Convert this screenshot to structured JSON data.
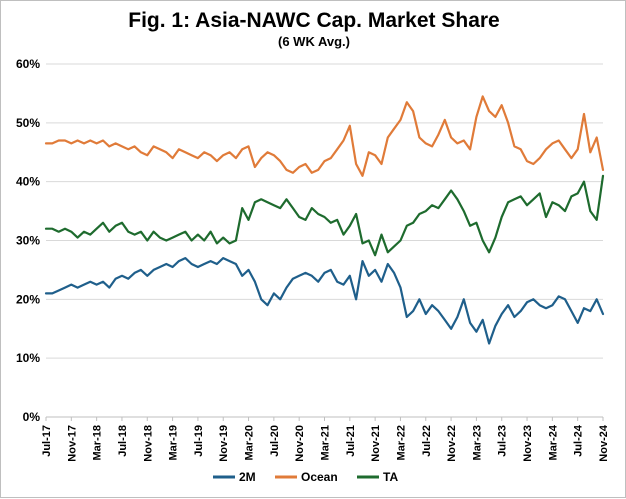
{
  "chart_data": {
    "type": "line",
    "title": "Fig. 1: Asia-NAWC Cap. Market Share",
    "subtitle": "(6 WK Avg.)",
    "xlabel": "",
    "ylabel": "",
    "ylim": [
      0,
      60
    ],
    "y_ticks": [
      "0%",
      "10%",
      "20%",
      "30%",
      "40%",
      "50%",
      "60%"
    ],
    "y_tick_values": [
      0,
      10,
      20,
      30,
      40,
      50,
      60
    ],
    "x_ticks": [
      "Jul-17",
      "Nov-17",
      "Mar-18",
      "Jul-18",
      "Nov-18",
      "Mar-19",
      "Jul-19",
      "Nov-19",
      "Mar-20",
      "Jul-20",
      "Nov-20",
      "Mar-21",
      "Jul-21",
      "Nov-21",
      "Mar-22",
      "Jul-22",
      "Nov-22",
      "Mar-23",
      "Jul-23",
      "Nov-23",
      "Mar-24",
      "Jul-24",
      "Nov-24"
    ],
    "x_tick_positions": [
      0,
      4,
      8,
      12,
      16,
      20,
      24,
      28,
      32,
      36,
      40,
      44,
      48,
      52,
      56,
      60,
      64,
      68,
      72,
      76,
      80,
      84,
      88
    ],
    "xlim": [
      0,
      88
    ],
    "legend_position": "bottom",
    "gridlines": true,
    "series": [
      {
        "name": "2M",
        "color": "#1f5f8b",
        "x": [
          0,
          1,
          2,
          3,
          4,
          5,
          6,
          7,
          8,
          9,
          10,
          11,
          12,
          13,
          14,
          15,
          16,
          17,
          18,
          19,
          20,
          21,
          22,
          23,
          24,
          25,
          26,
          27,
          28,
          29,
          30,
          31,
          32,
          33,
          34,
          35,
          36,
          37,
          38,
          39,
          40,
          41,
          42,
          43,
          44,
          45,
          46,
          47,
          48,
          49,
          50,
          51,
          52,
          53,
          54,
          55,
          56,
          57,
          58,
          59,
          60,
          61,
          62,
          63,
          64,
          65,
          66,
          67,
          68,
          69,
          70,
          71,
          72,
          73,
          74,
          75,
          76,
          77,
          78,
          79,
          80,
          81,
          82,
          83,
          84,
          85,
          86,
          87,
          88
        ],
        "values": [
          21.0,
          21.0,
          21.5,
          22.0,
          22.5,
          22.0,
          22.5,
          23.0,
          22.5,
          23.0,
          22.0,
          23.5,
          24.0,
          23.5,
          24.5,
          25.0,
          24.0,
          25.0,
          25.5,
          26.0,
          25.5,
          26.5,
          27.0,
          26.0,
          25.5,
          26.0,
          26.5,
          26.0,
          27.0,
          26.5,
          26.0,
          24.0,
          25.0,
          23.0,
          20.0,
          19.0,
          21.0,
          20.0,
          22.0,
          23.5,
          24.0,
          24.5,
          24.0,
          23.0,
          24.5,
          25.0,
          23.0,
          22.5,
          24.0,
          20.0,
          26.5,
          24.0,
          25.0,
          23.0,
          26.0,
          24.5,
          22.0,
          17.0,
          18.0,
          20.0,
          17.5,
          19.0,
          18.0,
          16.5,
          15.0,
          17.0,
          20.0,
          16.0,
          14.5,
          16.5,
          12.5,
          15.5,
          17.5,
          19.0,
          17.0,
          18.0,
          19.5,
          20.0,
          19.0,
          18.5,
          19.0,
          20.5,
          20.0,
          18.0,
          16.0,
          18.5,
          18.0,
          20.0,
          17.5
        ]
      },
      {
        "name": "Ocean",
        "color": "#e07b39",
        "x": [
          0,
          1,
          2,
          3,
          4,
          5,
          6,
          7,
          8,
          9,
          10,
          11,
          12,
          13,
          14,
          15,
          16,
          17,
          18,
          19,
          20,
          21,
          22,
          23,
          24,
          25,
          26,
          27,
          28,
          29,
          30,
          31,
          32,
          33,
          34,
          35,
          36,
          37,
          38,
          39,
          40,
          41,
          42,
          43,
          44,
          45,
          46,
          47,
          48,
          49,
          50,
          51,
          52,
          53,
          54,
          55,
          56,
          57,
          58,
          59,
          60,
          61,
          62,
          63,
          64,
          65,
          66,
          67,
          68,
          69,
          70,
          71,
          72,
          73,
          74,
          75,
          76,
          77,
          78,
          79,
          80,
          81,
          82,
          83,
          84,
          85,
          86,
          87,
          88
        ],
        "values": [
          46.5,
          46.5,
          47.0,
          47.0,
          46.5,
          47.0,
          46.5,
          47.0,
          46.5,
          47.0,
          46.0,
          46.5,
          46.0,
          45.5,
          46.0,
          45.0,
          44.5,
          46.0,
          45.5,
          45.0,
          44.0,
          45.5,
          45.0,
          44.5,
          44.0,
          45.0,
          44.5,
          43.5,
          44.5,
          45.0,
          44.0,
          45.5,
          46.0,
          42.5,
          44.0,
          45.0,
          44.5,
          43.5,
          42.0,
          41.5,
          42.5,
          43.0,
          41.5,
          42.0,
          43.5,
          44.0,
          45.5,
          47.0,
          49.5,
          43.0,
          41.0,
          45.0,
          44.5,
          43.0,
          47.5,
          49.0,
          50.5,
          53.5,
          52.0,
          47.5,
          46.5,
          46.0,
          48.0,
          50.5,
          47.5,
          46.5,
          47.0,
          45.5,
          51.0,
          54.5,
          52.0,
          51.0,
          53.0,
          50.0,
          46.0,
          45.5,
          43.5,
          43.0,
          44.0,
          45.5,
          46.5,
          47.0,
          45.5,
          44.0,
          45.5,
          51.5,
          45.0,
          47.5,
          42.0
        ]
      },
      {
        "name": "TA",
        "color": "#1e6b2e",
        "x": [
          0,
          1,
          2,
          3,
          4,
          5,
          6,
          7,
          8,
          9,
          10,
          11,
          12,
          13,
          14,
          15,
          16,
          17,
          18,
          19,
          20,
          21,
          22,
          23,
          24,
          25,
          26,
          27,
          28,
          29,
          30,
          31,
          32,
          33,
          34,
          35,
          36,
          37,
          38,
          39,
          40,
          41,
          42,
          43,
          44,
          45,
          46,
          47,
          48,
          49,
          50,
          51,
          52,
          53,
          54,
          55,
          56,
          57,
          58,
          59,
          60,
          61,
          62,
          63,
          64,
          65,
          66,
          67,
          68,
          69,
          70,
          71,
          72,
          73,
          74,
          75,
          76,
          77,
          78,
          79,
          80,
          81,
          82,
          83,
          84,
          85,
          86,
          87,
          88
        ],
        "values": [
          32.0,
          32.0,
          31.5,
          32.0,
          31.5,
          30.5,
          31.5,
          31.0,
          32.0,
          33.0,
          31.5,
          32.5,
          33.0,
          31.5,
          31.0,
          31.5,
          30.0,
          31.5,
          30.5,
          30.0,
          30.5,
          31.0,
          31.5,
          30.0,
          31.0,
          30.0,
          31.5,
          29.5,
          30.5,
          29.5,
          30.0,
          35.5,
          33.5,
          36.5,
          37.0,
          36.5,
          36.0,
          35.5,
          37.0,
          35.5,
          34.0,
          33.5,
          35.5,
          34.5,
          34.0,
          33.0,
          33.5,
          31.0,
          32.5,
          34.5,
          29.5,
          30.0,
          27.5,
          31.0,
          28.0,
          29.0,
          30.0,
          32.5,
          33.0,
          34.5,
          35.0,
          36.0,
          35.5,
          37.0,
          38.5,
          37.0,
          35.0,
          32.5,
          33.0,
          30.0,
          28.0,
          30.5,
          34.0,
          36.5,
          37.0,
          37.5,
          36.0,
          37.0,
          38.0,
          34.0,
          36.5,
          36.0,
          35.0,
          37.5,
          38.0,
          40.0,
          35.0,
          33.5,
          41.0
        ]
      }
    ]
  }
}
